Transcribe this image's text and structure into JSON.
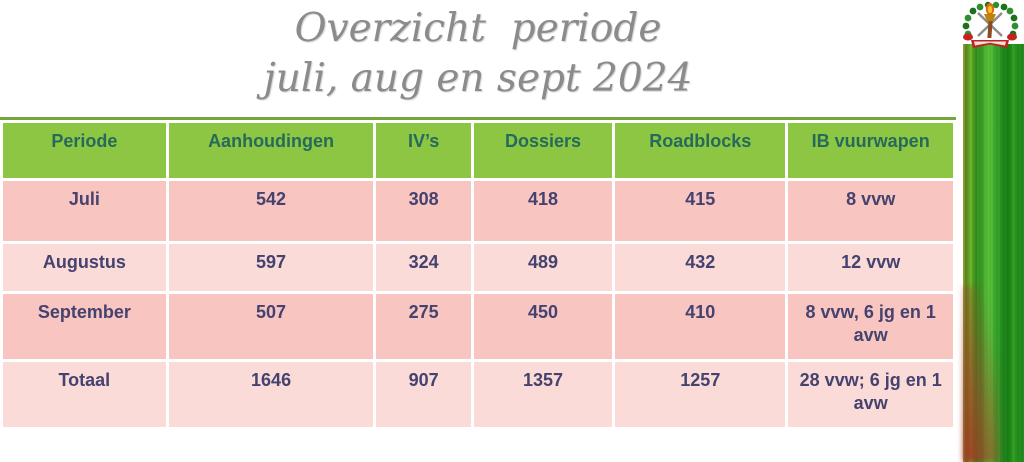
{
  "title": {
    "line1": "Overzicht  periode",
    "line2": "juli, aug en sept 2024"
  },
  "table": {
    "columns": [
      "Periode",
      "Aanhoudingen",
      "IV’s",
      "Dossiers",
      "Roadblocks",
      "IB vuurwapen"
    ],
    "rows": [
      {
        "label": "Juli",
        "values": [
          "542",
          "308",
          "418",
          "415",
          "8 vvw"
        ]
      },
      {
        "label": "Augustus",
        "values": [
          "597",
          "324",
          "489",
          "432",
          "12 vvw"
        ]
      },
      {
        "label": "September",
        "values": [
          "507",
          "275",
          "450",
          "410",
          "8 vvw, 6 jg en 1 avw"
        ]
      },
      {
        "label": "Totaal",
        "values": [
          "1646",
          "907",
          "1357",
          "1257",
          "28 vvw; 6 jg en 1 avw"
        ]
      }
    ]
  },
  "chart_data": {
    "type": "table",
    "title": "Overzicht periode juli, aug en sept 2024",
    "categories": [
      "Juli",
      "Augustus",
      "September",
      "Totaal"
    ],
    "series": [
      {
        "name": "Aanhoudingen",
        "values": [
          542,
          597,
          507,
          1646
        ]
      },
      {
        "name": "IV’s",
        "values": [
          308,
          324,
          275,
          907
        ]
      },
      {
        "name": "Dossiers",
        "values": [
          418,
          489,
          450,
          1357
        ]
      },
      {
        "name": "Roadblocks",
        "values": [
          415,
          432,
          410,
          1257
        ]
      },
      {
        "name": "IB vuurwapen",
        "values": [
          "8 vvw",
          "12 vvw",
          "8 vvw, 6 jg en 1 avw",
          "28 vvw; 6 jg en 1 avw"
        ]
      }
    ]
  },
  "colors": {
    "header_bg": "#8cc643",
    "header_text": "#266a5c",
    "row_pink": "#f9c5c1",
    "row_light_pink": "#fbdbd8",
    "data_text": "#44426f",
    "title_text": "#8b8b8b",
    "stripe_green": "#2d9e22",
    "stripe_red": "#a73023"
  },
  "emblem": {
    "name": "police-crest"
  }
}
